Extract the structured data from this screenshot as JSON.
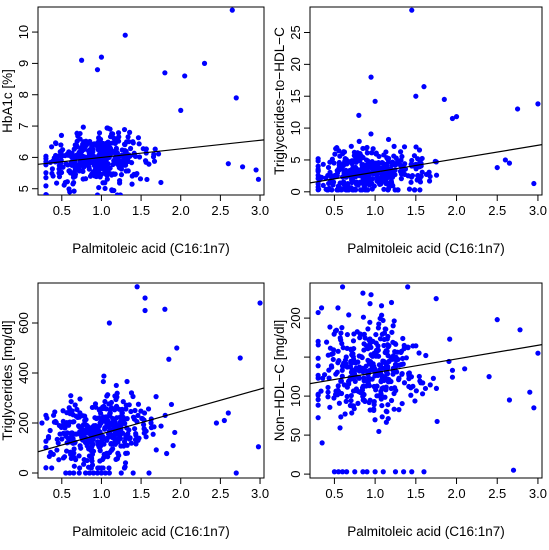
{
  "chart_data": [
    {
      "type": "scatter",
      "xlabel": "Palmitoleic acid (C16:1n7)",
      "ylabel": "HbA1c [%]",
      "xlim": [
        0.2,
        3.05
      ],
      "ylim": [
        4.8,
        10.8
      ],
      "xticks": [
        0.5,
        1.0,
        1.5,
        2.0,
        2.5,
        3.0
      ],
      "xtick_labels": [
        "0.5",
        "1.0",
        "1.5",
        "2.0",
        "2.5",
        "3.0"
      ],
      "yticks": [
        5,
        6,
        7,
        8,
        9,
        10
      ],
      "ytick_labels": [
        "5",
        "6",
        "7",
        "8",
        "9",
        "10"
      ],
      "point_color": "#0000ff",
      "fit_line": {
        "x": [
          0.2,
          3.05
        ],
        "y": [
          5.78,
          6.56
        ]
      },
      "highlight_points": [
        {
          "x": 2.65,
          "y": 10.7
        },
        {
          "x": 1.3,
          "y": 9.9
        },
        {
          "x": 1.0,
          "y": 9.2
        },
        {
          "x": 0.75,
          "y": 9.1
        },
        {
          "x": 2.3,
          "y": 9.0
        },
        {
          "x": 0.95,
          "y": 8.8
        },
        {
          "x": 1.8,
          "y": 8.7
        },
        {
          "x": 2.05,
          "y": 8.6
        },
        {
          "x": 2.7,
          "y": 7.9
        },
        {
          "x": 2.0,
          "y": 7.5
        },
        {
          "x": 2.6,
          "y": 5.8
        },
        {
          "x": 2.78,
          "y": 5.7
        },
        {
          "x": 2.95,
          "y": 5.6
        },
        {
          "x": 2.98,
          "y": 5.3
        },
        {
          "x": 1.75,
          "y": 5.2
        },
        {
          "x": 1.2,
          "y": 4.8
        },
        {
          "x": 0.95,
          "y": 4.8
        },
        {
          "x": 0.6,
          "y": 4.9
        }
      ],
      "cloud": {
        "n": 380,
        "xmin": 0.3,
        "xmax": 1.95,
        "xmean": 0.95,
        "xsd": 0.33,
        "ymean": 5.95,
        "ysd": 0.38,
        "ymin": 4.8,
        "ymax": 7.9
      }
    },
    {
      "type": "scatter",
      "xlabel": "Palmitoleic acid (C16:1n7)",
      "ylabel": "Triglycerides−to−HDL−C",
      "xlim": [
        0.2,
        3.05
      ],
      "ylim": [
        -0.5,
        29
      ],
      "xticks": [
        0.5,
        1.0,
        1.5,
        2.0,
        2.5,
        3.0
      ],
      "xtick_labels": [
        "0.5",
        "1.0",
        "1.5",
        "2.0",
        "2.5",
        "3.0"
      ],
      "yticks": [
        0,
        5,
        10,
        15,
        20,
        25
      ],
      "ytick_labels": [
        "0",
        "5",
        "10",
        "15",
        "20",
        "25"
      ],
      "point_color": "#0000ff",
      "fit_line": {
        "x": [
          0.2,
          3.05
        ],
        "y": [
          1.4,
          7.4
        ]
      },
      "highlight_points": [
        {
          "x": 1.45,
          "y": 28.5
        },
        {
          "x": 0.95,
          "y": 18.0
        },
        {
          "x": 1.6,
          "y": 16.5
        },
        {
          "x": 1.5,
          "y": 15.0
        },
        {
          "x": 1.85,
          "y": 14.5
        },
        {
          "x": 3.0,
          "y": 13.8
        },
        {
          "x": 2.75,
          "y": 13.0
        },
        {
          "x": 2.0,
          "y": 11.8
        },
        {
          "x": 1.95,
          "y": 11.5
        },
        {
          "x": 0.8,
          "y": 12.0
        },
        {
          "x": 1.0,
          "y": 14.2
        },
        {
          "x": 2.6,
          "y": 5.0
        },
        {
          "x": 2.65,
          "y": 4.5
        },
        {
          "x": 2.5,
          "y": 3.8
        },
        {
          "x": 2.95,
          "y": 1.3
        },
        {
          "x": 0.3,
          "y": 5.2
        }
      ],
      "cloud": {
        "n": 380,
        "xmin": 0.3,
        "xmax": 1.95,
        "xmean": 0.95,
        "xsd": 0.33,
        "ymean": 3.0,
        "ysd": 1.9,
        "ymin": 0.3,
        "ymax": 11
      }
    },
    {
      "type": "scatter",
      "xlabel": "Palmitoleic acid (C16:1n7)",
      "ylabel": "Triglycerides [mg/dl]",
      "xlim": [
        0.2,
        3.05
      ],
      "ylim": [
        -20,
        760
      ],
      "xticks": [
        0.5,
        1.0,
        1.5,
        2.0,
        2.5,
        3.0
      ],
      "xtick_labels": [
        "0.5",
        "1.0",
        "1.5",
        "2.0",
        "2.5",
        "3.0"
      ],
      "yticks": [
        0,
        200,
        400,
        600
      ],
      "ytick_labels": [
        "0",
        "200",
        "400",
        "600"
      ],
      "point_color": "#0000ff",
      "fit_line": {
        "x": [
          0.2,
          3.05
        ],
        "y": [
          85,
          340
        ]
      },
      "highlight_points": [
        {
          "x": 1.45,
          "y": 745
        },
        {
          "x": 1.55,
          "y": 700
        },
        {
          "x": 3.0,
          "y": 680
        },
        {
          "x": 1.8,
          "y": 655
        },
        {
          "x": 1.55,
          "y": 650
        },
        {
          "x": 1.1,
          "y": 600
        },
        {
          "x": 1.95,
          "y": 500
        },
        {
          "x": 2.75,
          "y": 460
        },
        {
          "x": 1.85,
          "y": 455
        },
        {
          "x": 2.6,
          "y": 240
        },
        {
          "x": 2.55,
          "y": 210
        },
        {
          "x": 2.45,
          "y": 200
        },
        {
          "x": 2.98,
          "y": 105
        },
        {
          "x": 2.7,
          "y": 0
        },
        {
          "x": 0.25,
          "y": 200
        }
      ],
      "zero_points_x": [
        0.55,
        0.6,
        0.65,
        0.72,
        0.8,
        0.85,
        0.9,
        0.95,
        1.0,
        1.05,
        1.1,
        1.25,
        1.4,
        1.6
      ],
      "cloud": {
        "n": 380,
        "xmin": 0.3,
        "xmax": 1.95,
        "xmean": 0.95,
        "xsd": 0.33,
        "ymean": 160,
        "ysd": 75,
        "ymin": 20,
        "ymax": 430
      }
    },
    {
      "type": "scatter",
      "xlabel": "Palmitoleic acid (C16:1n7)",
      "ylabel": "Non−HDL−C [mg/dl]",
      "xlim": [
        0.2,
        3.05
      ],
      "ylim": [
        -5,
        245
      ],
      "xticks": [
        0.5,
        1.0,
        1.5,
        2.0,
        2.5,
        3.0
      ],
      "xtick_labels": [
        "0.5",
        "1.0",
        "1.5",
        "2.0",
        "2.5",
        "3.0"
      ],
      "yticks": [
        0,
        50,
        100,
        150,
        200
      ],
      "ytick_labels": [
        "0",
        "50",
        "100",
        "200"
      ],
      "ytick_values_for_labels": [
        0,
        50,
        100,
        200
      ],
      "point_color": "#0000ff",
      "fit_line": {
        "x": [
          0.2,
          3.05
        ],
        "y": [
          116,
          166
        ]
      },
      "highlight_points": [
        {
          "x": 0.6,
          "y": 240
        },
        {
          "x": 1.4,
          "y": 240
        },
        {
          "x": 0.85,
          "y": 232
        },
        {
          "x": 0.95,
          "y": 230
        },
        {
          "x": 1.75,
          "y": 225
        },
        {
          "x": 2.5,
          "y": 198
        },
        {
          "x": 2.78,
          "y": 185
        },
        {
          "x": 3.0,
          "y": 155
        },
        {
          "x": 2.1,
          "y": 135
        },
        {
          "x": 2.4,
          "y": 125
        },
        {
          "x": 2.9,
          "y": 105
        },
        {
          "x": 2.95,
          "y": 85
        },
        {
          "x": 2.65,
          "y": 95
        },
        {
          "x": 2.7,
          "y": 5
        }
      ],
      "zero_points_x": [
        0.5,
        0.55,
        0.6,
        0.65,
        0.75,
        0.85,
        0.9,
        1.0,
        1.1,
        1.25,
        1.35,
        1.45,
        1.6
      ],
      "cloud": {
        "n": 380,
        "xmin": 0.3,
        "xmax": 1.95,
        "xmean": 0.95,
        "xsd": 0.33,
        "ymean": 135,
        "ysd": 32,
        "ymin": 40,
        "ymax": 220
      }
    }
  ]
}
